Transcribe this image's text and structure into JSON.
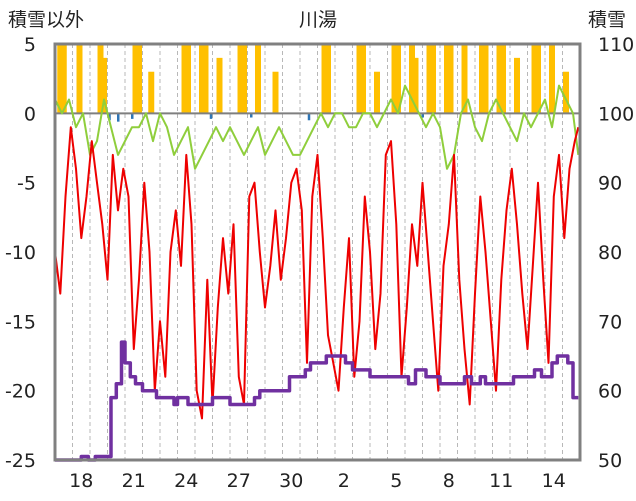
{
  "chart_data": {
    "type": "line",
    "title": "川湯",
    "left_axis": {
      "title": "積雪以外",
      "ylim": [
        -25,
        5
      ],
      "ticks": [
        "5",
        "0",
        "-5",
        "-10",
        "-15",
        "-20",
        "-25"
      ]
    },
    "right_axis": {
      "title": "積雪",
      "ylim": [
        50,
        110
      ],
      "ticks": [
        "110",
        "100",
        "90",
        "80",
        "70",
        "60",
        "50"
      ]
    },
    "x_ticks": [
      {
        "day": 1.5,
        "label": "18"
      },
      {
        "day": 4.5,
        "label": "21"
      },
      {
        "day": 7.5,
        "label": "24"
      },
      {
        "day": 10.5,
        "label": "27"
      },
      {
        "day": 13.5,
        "label": "30"
      },
      {
        "day": 16.5,
        "label": "2"
      },
      {
        "day": 19.5,
        "label": "5"
      },
      {
        "day": 22.5,
        "label": "8"
      },
      {
        "day": 25.5,
        "label": "11"
      },
      {
        "day": 28.5,
        "label": "14"
      }
    ],
    "x_range": [
      0,
      30
    ],
    "grid": "vertical dashed lines at day boundaries",
    "colors": {
      "temperature_min": "#ee0000",
      "temperature_max": "#8fce3c",
      "precipitation": "#ffc000",
      "snowfall": "#2e75b6",
      "snow_depth": "#7030a0",
      "frame": "#808080",
      "zero_line": "#7f7f7f"
    },
    "series": [
      {
        "key": "temperature_min",
        "axis": "left",
        "render": "line",
        "x": [
          0.0,
          0.3,
          0.6,
          0.9,
          1.2,
          1.5,
          1.8,
          2.1,
          2.4,
          2.7,
          3.0,
          3.3,
          3.6,
          3.9,
          4.2,
          4.5,
          4.8,
          5.1,
          5.4,
          5.7,
          6.0,
          6.3,
          6.6,
          6.9,
          7.2,
          7.5,
          7.8,
          8.1,
          8.4,
          8.7,
          9.0,
          9.3,
          9.6,
          9.9,
          10.2,
          10.5,
          10.8,
          11.1,
          11.4,
          11.7,
          12.0,
          12.3,
          12.6,
          12.9,
          13.2,
          13.5,
          13.8,
          14.1,
          14.4,
          14.7,
          15.0,
          15.3,
          15.6,
          15.9,
          16.2,
          16.5,
          16.8,
          17.1,
          17.4,
          17.7,
          18.0,
          18.3,
          18.6,
          18.9,
          19.2,
          19.5,
          19.8,
          20.1,
          20.4,
          20.7,
          21.0,
          21.3,
          21.6,
          21.9,
          22.2,
          22.5,
          22.8,
          23.1,
          23.4,
          23.7,
          24.0,
          24.3,
          24.6,
          24.9,
          25.2,
          25.5,
          25.8,
          26.1,
          26.4,
          26.7,
          27.0,
          27.3,
          27.6,
          27.9,
          28.2,
          28.5,
          28.8,
          29.1,
          29.4,
          29.7,
          29.9
        ],
        "y": [
          -10,
          -13,
          -6,
          -1,
          -4,
          -9,
          -6,
          -2,
          -5,
          -8,
          -12,
          -3,
          -7,
          -4,
          -6,
          -17,
          -12,
          -5,
          -10,
          -20,
          -15,
          -19,
          -10,
          -7,
          -11,
          -3,
          -8,
          -20,
          -22,
          -12,
          -21,
          -14,
          -9,
          -13,
          -8,
          -19,
          -21,
          -6,
          -5,
          -10,
          -14,
          -11,
          -7,
          -12,
          -9,
          -5,
          -4,
          -7,
          -18,
          -6,
          -3,
          -9,
          -16,
          -18,
          -20,
          -14,
          -9,
          -19,
          -15,
          -6,
          -10,
          -17,
          -13,
          -3,
          -2,
          -8,
          -19,
          -14,
          -8,
          -11,
          -5,
          -10,
          -15,
          -20,
          -11,
          -8,
          -3,
          -12,
          -17,
          -21,
          -13,
          -6,
          -10,
          -15,
          -20,
          -12,
          -7,
          -4,
          -8,
          -13,
          -17,
          -11,
          -5,
          -12,
          -18,
          -6,
          -3,
          -9,
          -4,
          -2,
          -1
        ]
      },
      {
        "key": "temperature_max",
        "axis": "left",
        "render": "line",
        "x": [
          0.0,
          0.4,
          0.8,
          1.2,
          1.6,
          2.0,
          2.4,
          2.8,
          3.2,
          3.6,
          4.0,
          4.4,
          4.8,
          5.2,
          5.6,
          6.0,
          6.4,
          6.8,
          7.2,
          7.6,
          8.0,
          8.4,
          8.8,
          9.2,
          9.6,
          10.0,
          10.4,
          10.8,
          11.2,
          11.6,
          12.0,
          12.4,
          12.8,
          13.2,
          13.6,
          14.0,
          14.4,
          14.8,
          15.2,
          15.6,
          16.0,
          16.4,
          16.8,
          17.2,
          17.6,
          18.0,
          18.4,
          18.8,
          19.2,
          19.6,
          20.0,
          20.4,
          20.8,
          21.2,
          21.6,
          22.0,
          22.4,
          22.8,
          23.2,
          23.6,
          24.0,
          24.4,
          24.8,
          25.2,
          25.6,
          26.0,
          26.4,
          26.8,
          27.2,
          27.6,
          28.0,
          28.4,
          28.8,
          29.2,
          29.6,
          29.9
        ],
        "y": [
          1,
          0,
          1,
          -1,
          0,
          -3,
          -2,
          1,
          -1,
          -3,
          -2,
          -1,
          -1,
          0,
          -2,
          0,
          -1,
          -3,
          -2,
          -1,
          -4,
          -3,
          -2,
          -1,
          -2,
          -1,
          -2,
          -3,
          -2,
          -1,
          -3,
          -2,
          -1,
          -2,
          -3,
          -3,
          -2,
          -1,
          0,
          -1,
          0,
          0,
          -1,
          -1,
          0,
          0,
          -1,
          0,
          1,
          0,
          2,
          1,
          0,
          -1,
          0,
          -1,
          -4,
          -3,
          0,
          1,
          -1,
          -2,
          0,
          1,
          0,
          -1,
          -2,
          0,
          -1,
          0,
          1,
          -1,
          2,
          1,
          0,
          -3
        ]
      },
      {
        "key": "precipitation",
        "axis": "left",
        "render": "bars-from-zero",
        "x": [
          0.3,
          0.5,
          1.4,
          2.6,
          2.8,
          4.6,
          4.8,
          5.5,
          7.4,
          7.6,
          8.4,
          8.6,
          9.4,
          10.6,
          10.8,
          11.6,
          12.6,
          15.4,
          15.6,
          17.4,
          17.6,
          18.4,
          19.4,
          19.6,
          20.4,
          20.6,
          21.4,
          21.6,
          22.4,
          22.6,
          23.4,
          24.4,
          24.6,
          25.4,
          25.6,
          26.4,
          27.4,
          27.6,
          28.4,
          29.2
        ],
        "y": [
          5,
          5,
          5,
          5,
          4,
          5,
          5,
          3,
          5,
          5,
          5,
          5,
          4,
          5,
          5,
          5,
          3,
          5,
          5,
          5,
          5,
          3,
          5,
          5,
          5,
          4,
          5,
          5,
          5,
          5,
          5,
          5,
          5,
          5,
          5,
          4,
          5,
          5,
          5,
          3
        ]
      },
      {
        "key": "snowfall",
        "axis": "left",
        "render": "bars-from-zero",
        "x": [
          3.1,
          3.6,
          4.4,
          8.9,
          11.2,
          14.5,
          21.0
        ],
        "y": [
          -0.5,
          -0.6,
          -0.4,
          -0.4,
          -0.3,
          -0.5,
          -0.3
        ]
      },
      {
        "key": "snow_depth",
        "axis": "right",
        "render": "step",
        "x": [
          0,
          1.5,
          1.9,
          2.3,
          3.2,
          3.5,
          3.8,
          4.0,
          4.3,
          4.6,
          5.0,
          5.4,
          5.8,
          6.2,
          6.8,
          7.0,
          7.6,
          7.8,
          8.2,
          8.6,
          9.0,
          10.0,
          10.6,
          11.4,
          11.7,
          12.2,
          13.4,
          13.8,
          14.3,
          14.6,
          15.0,
          15.5,
          16.2,
          16.6,
          17.0,
          18.0,
          19.0,
          19.4,
          19.8,
          20.2,
          20.6,
          21.2,
          22.0,
          23.0,
          23.4,
          23.8,
          24.3,
          24.6,
          25.4,
          26.2,
          26.6,
          27.4,
          27.8,
          28.4,
          28.7,
          29.3,
          29.6,
          29.9
        ],
        "y": [
          50,
          50.5,
          50,
          50.5,
          59,
          61,
          67,
          64,
          62,
          61,
          60,
          60,
          59,
          59,
          58,
          59,
          58,
          58,
          58,
          58,
          59,
          58,
          58,
          59,
          60,
          60,
          62,
          62,
          63,
          64,
          64,
          65,
          65,
          64,
          63,
          62,
          62,
          62,
          62,
          61,
          63,
          62,
          61,
          61,
          62,
          61,
          62,
          61,
          61,
          62,
          62,
          63,
          62,
          64,
          65,
          64,
          59,
          59
        ]
      }
    ]
  }
}
